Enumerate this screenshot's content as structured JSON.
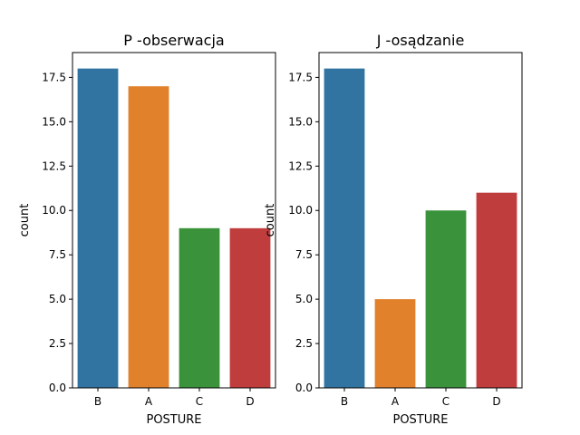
{
  "chart_data": [
    {
      "type": "bar",
      "title": "P -obserwacja",
      "xlabel": "POSTURE",
      "ylabel": "count",
      "categories": [
        "B",
        "A",
        "C",
        "D"
      ],
      "values": [
        18,
        17,
        9,
        9
      ],
      "colors": [
        "#3274a1",
        "#e1812c",
        "#3a923a",
        "#c03d3e"
      ],
      "ylim": [
        0,
        18.9
      ],
      "yticks": [
        "0.0",
        "2.5",
        "5.0",
        "7.5",
        "10.0",
        "12.5",
        "15.0",
        "17.5"
      ],
      "grid": false
    },
    {
      "type": "bar",
      "title": "J -osądzanie",
      "xlabel": "POSTURE",
      "ylabel": "count",
      "categories": [
        "B",
        "A",
        "C",
        "D"
      ],
      "values": [
        18,
        5,
        10,
        11
      ],
      "colors": [
        "#3274a1",
        "#e1812c",
        "#3a923a",
        "#c03d3e"
      ],
      "ylim": [
        0,
        18.9
      ],
      "yticks": [
        "0.0",
        "2.5",
        "5.0",
        "7.5",
        "10.0",
        "12.5",
        "15.0",
        "17.5"
      ],
      "grid": false
    }
  ]
}
